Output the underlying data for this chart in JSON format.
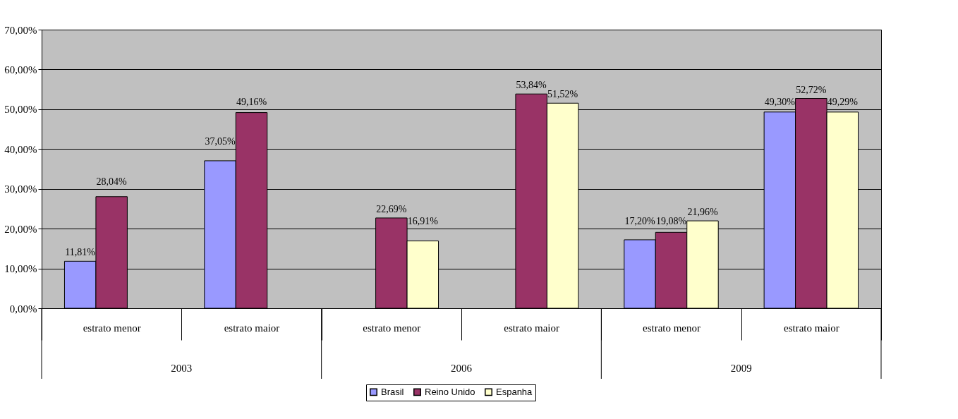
{
  "chart_data": {
    "type": "bar",
    "categories": [
      "estrato menor",
      "estrato maior",
      "estrato menor",
      "estrato maior",
      "estrato menor",
      "estrato maior"
    ],
    "series": [
      {
        "name": "Brasil",
        "color": "#9999ff",
        "values": [
          11.81,
          37.05,
          null,
          null,
          17.2,
          49.3
        ],
        "value_labels": [
          "11,81%",
          "37,05%",
          null,
          null,
          "17,20%",
          "49,30%"
        ]
      },
      {
        "name": "Reino Unido",
        "color": "#993366",
        "values": [
          28.04,
          49.16,
          22.69,
          53.84,
          19.08,
          52.72
        ],
        "value_labels": [
          "28,04%",
          "49,16%",
          "22,69%",
          "53,84%",
          "19,08%",
          "52,72%"
        ]
      },
      {
        "name": "Espanha",
        "color": "#ffffcc",
        "values": [
          null,
          null,
          16.91,
          51.52,
          21.96,
          49.29
        ],
        "value_labels": [
          null,
          null,
          "16,91%",
          "51,52%",
          "21,96%",
          "49,29%"
        ]
      }
    ],
    "annotations": [
      "2003",
      "2006",
      "2009"
    ],
    "ylim": [
      0,
      70
    ],
    "yticks": [
      {
        "value": 0,
        "label": "0,00%"
      },
      {
        "value": 10,
        "label": "10,00%"
      },
      {
        "value": 20,
        "label": "20,00%"
      },
      {
        "value": 30,
        "label": "30,00%"
      },
      {
        "value": 40,
        "label": "40,00%"
      },
      {
        "value": 50,
        "label": "50,00%"
      },
      {
        "value": 60,
        "label": "60,00%"
      },
      {
        "value": 70,
        "label": "70,00%"
      }
    ],
    "grid": "y",
    "legend": "bottom"
  }
}
